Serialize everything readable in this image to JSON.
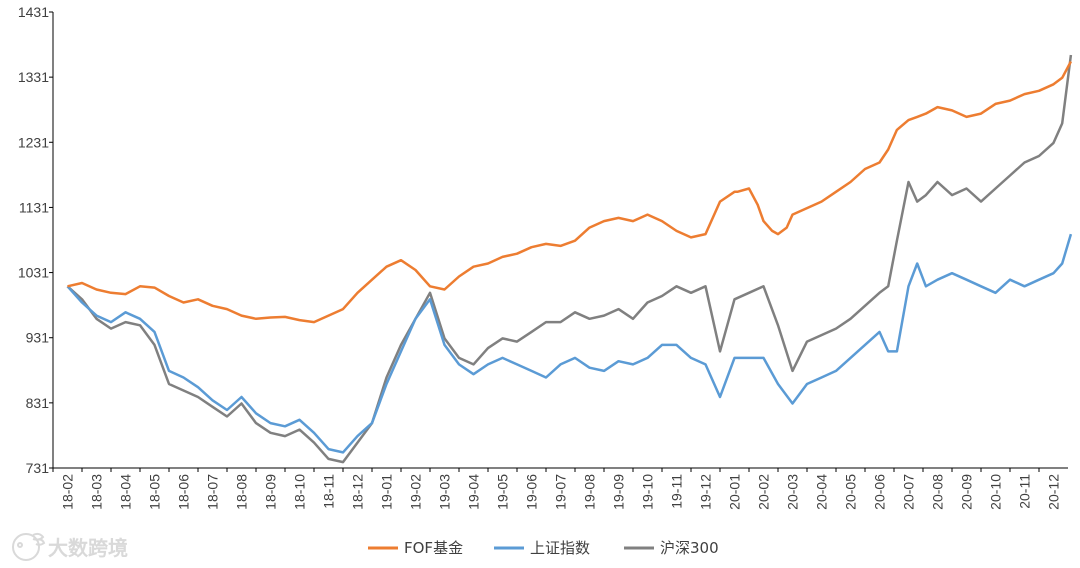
{
  "chart_data": {
    "type": "line",
    "title": "",
    "xlabel": "",
    "ylabel": "",
    "ylim": [
      731,
      1431
    ],
    "y_ticks": [
      731,
      831,
      931,
      1031,
      1131,
      1231,
      1331,
      1431
    ],
    "x_ticks": [
      "18-02",
      "18-03",
      "18-04",
      "18-05",
      "18-06",
      "18-07",
      "18-08",
      "18-09",
      "18-10",
      "18-11",
      "18-12",
      "19-01",
      "19-02",
      "19-03",
      "19-04",
      "19-05",
      "19-06",
      "19-07",
      "19-08",
      "19-09",
      "19-10",
      "19-11",
      "19-12",
      "20-01",
      "20-02",
      "20-03",
      "20-04",
      "20-05",
      "20-06",
      "20-07",
      "20-08",
      "20-09",
      "20-10",
      "20-11",
      "20-12"
    ],
    "grid": false,
    "legend_position": "bottom",
    "series": [
      {
        "name": "FOF基金",
        "color": "#ED7D31",
        "x": [
          0,
          0.5,
          1,
          1.5,
          2,
          2.5,
          3,
          3.5,
          4,
          4.5,
          5,
          5.5,
          6,
          6.5,
          7,
          7.5,
          8,
          8.5,
          9,
          9.5,
          10,
          10.5,
          11,
          11.5,
          12,
          12.5,
          13,
          13.5,
          14,
          14.5,
          15,
          15.5,
          16,
          16.5,
          17,
          17.5,
          18,
          18.5,
          19,
          19.5,
          20,
          20.5,
          21,
          21.5,
          22,
          22.5,
          23,
          23.1,
          23.5,
          23.8,
          24,
          24.3,
          24.5,
          24.8,
          25,
          25.5,
          26,
          26.5,
          27,
          27.5,
          28,
          28.3,
          28.6,
          29,
          29.3,
          29.6,
          30,
          30.5,
          31,
          31.5,
          32,
          32.5,
          33,
          33.5,
          34,
          34.3,
          34.6
        ],
        "values": [
          1010,
          1015,
          1005,
          1000,
          998,
          1010,
          1008,
          995,
          985,
          990,
          980,
          975,
          965,
          960,
          962,
          963,
          958,
          955,
          965,
          975,
          1000,
          1020,
          1040,
          1050,
          1035,
          1010,
          1005,
          1025,
          1040,
          1045,
          1055,
          1060,
          1070,
          1075,
          1072,
          1080,
          1100,
          1110,
          1115,
          1110,
          1120,
          1110,
          1095,
          1085,
          1090,
          1140,
          1155,
          1155,
          1160,
          1135,
          1110,
          1095,
          1090,
          1100,
          1120,
          1130,
          1140,
          1155,
          1170,
          1190,
          1200,
          1220,
          1250,
          1265,
          1270,
          1275,
          1285,
          1280,
          1270,
          1275,
          1290,
          1295,
          1305,
          1310,
          1320,
          1330,
          1355
        ]
      },
      {
        "name": "上证指数",
        "color": "#5B9BD5",
        "x": [
          0,
          0.5,
          1,
          1.5,
          2,
          2.5,
          3,
          3.5,
          4,
          4.5,
          5,
          5.5,
          6,
          6.5,
          7,
          7.5,
          8,
          8.5,
          9,
          9.5,
          10,
          10.5,
          11,
          11.5,
          12,
          12.5,
          13,
          13.5,
          14,
          14.5,
          15,
          15.5,
          16,
          16.5,
          17,
          17.5,
          18,
          18.5,
          19,
          19.5,
          20,
          20.5,
          21,
          21.5,
          22,
          22.5,
          23,
          23.5,
          24,
          24.5,
          25,
          25.5,
          26,
          26.5,
          27,
          27.5,
          28,
          28.3,
          28.6,
          29,
          29.3,
          29.6,
          30,
          30.5,
          31,
          31.5,
          32,
          32.5,
          33,
          33.5,
          34,
          34.3,
          34.6
        ],
        "values": [
          1010,
          985,
          965,
          955,
          970,
          960,
          940,
          880,
          870,
          855,
          835,
          820,
          840,
          815,
          800,
          795,
          805,
          785,
          760,
          755,
          780,
          800,
          860,
          910,
          960,
          990,
          920,
          890,
          875,
          890,
          900,
          890,
          880,
          870,
          890,
          900,
          885,
          880,
          895,
          890,
          900,
          920,
          920,
          900,
          890,
          840,
          900,
          900,
          900,
          860,
          830,
          860,
          870,
          880,
          900,
          920,
          940,
          910,
          910,
          1010,
          1045,
          1010,
          1020,
          1030,
          1020,
          1010,
          1000,
          1020,
          1010,
          1020,
          1030,
          1045,
          1090
        ]
      },
      {
        "name": "沪深300",
        "color": "#808080",
        "x": [
          0,
          0.5,
          1,
          1.5,
          2,
          2.5,
          3,
          3.5,
          4,
          4.5,
          5,
          5.5,
          6,
          6.5,
          7,
          7.5,
          8,
          8.5,
          9,
          9.5,
          10,
          10.5,
          11,
          11.5,
          12,
          12.5,
          13,
          13.5,
          14,
          14.5,
          15,
          15.5,
          16,
          16.5,
          17,
          17.5,
          18,
          18.5,
          19,
          19.5,
          20,
          20.5,
          21,
          21.5,
          22,
          22.5,
          23,
          23.5,
          24,
          24.5,
          25,
          25.5,
          26,
          26.5,
          27,
          27.5,
          28,
          28.3,
          28.6,
          29,
          29.3,
          29.6,
          30,
          30.5,
          31,
          31.5,
          32,
          32.5,
          33,
          33.5,
          34,
          34.3,
          34.6
        ],
        "values": [
          1010,
          990,
          960,
          945,
          955,
          950,
          920,
          860,
          850,
          840,
          825,
          810,
          830,
          800,
          785,
          780,
          790,
          770,
          745,
          740,
          770,
          800,
          870,
          920,
          960,
          1000,
          930,
          900,
          890,
          915,
          930,
          925,
          940,
          955,
          955,
          970,
          960,
          965,
          975,
          960,
          985,
          995,
          1010,
          1000,
          1010,
          910,
          990,
          1000,
          1010,
          950,
          880,
          925,
          935,
          945,
          960,
          980,
          1000,
          1010,
          1080,
          1170,
          1140,
          1150,
          1170,
          1150,
          1160,
          1140,
          1160,
          1180,
          1200,
          1210,
          1230,
          1260,
          1365
        ]
      }
    ]
  },
  "legend": {
    "items": [
      "FOF基金",
      "上证指数",
      "沪深300"
    ]
  },
  "watermark": {
    "text": "大数跨境",
    "logo_icon": "fish-face-icon"
  }
}
